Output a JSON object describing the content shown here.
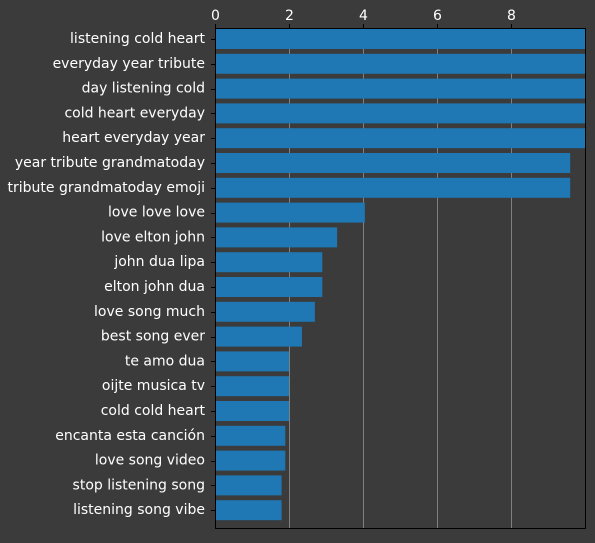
{
  "colors": {
    "background": "#3b3b3b",
    "bar": "#1f77b4",
    "grid": "#808080",
    "axis": "#000000",
    "text": "#ffffff"
  },
  "chart_data": {
    "type": "bar",
    "orientation": "horizontal",
    "title": "",
    "xlabel": "",
    "ylabel": "",
    "xlim": [
      0,
      10
    ],
    "xticks": [
      0,
      2,
      4,
      6,
      8
    ],
    "x_axis_position": "top",
    "grid": "vertical",
    "categories": [
      "listening cold heart",
      "everyday year tribute",
      "day listening cold",
      "cold heart everyday",
      "heart everyday year",
      "year tribute grandmatoday",
      "tribute grandmatoday emoji",
      "love love love",
      "love elton john",
      "john dua lipa",
      "elton john dua",
      "love song much",
      "best song ever",
      "te amo dua",
      "oijte musica tv",
      "cold cold heart",
      "encanta esta canción",
      "love song video",
      "stop listening song",
      "listening song vibe"
    ],
    "values": [
      10,
      10,
      10,
      10,
      10,
      9.6,
      9.6,
      4.05,
      3.3,
      2.9,
      2.9,
      2.7,
      2.35,
      2.0,
      2.0,
      2.0,
      1.9,
      1.9,
      1.8,
      1.8
    ]
  }
}
